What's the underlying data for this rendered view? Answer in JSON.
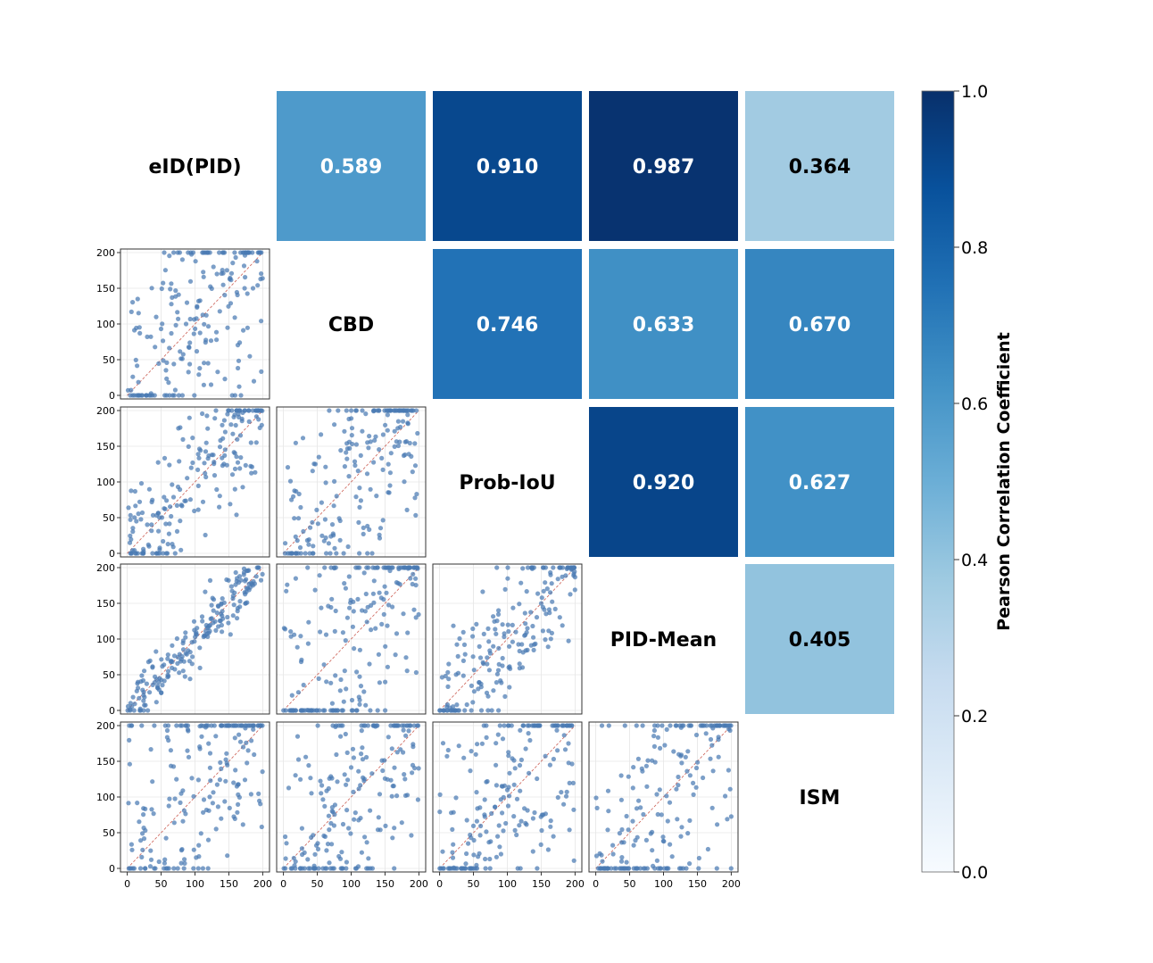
{
  "chart_data": {
    "type": "heatmap",
    "title": "",
    "metrics": [
      "eID(PID)",
      "CBD",
      "Prob-IoU",
      "PID-Mean",
      "ISM"
    ],
    "correlations": [
      {
        "row": "eID(PID)",
        "col": "CBD",
        "value": "0.589"
      },
      {
        "row": "eID(PID)",
        "col": "Prob-IoU",
        "value": "0.910"
      },
      {
        "row": "eID(PID)",
        "col": "PID-Mean",
        "value": "0.987"
      },
      {
        "row": "eID(PID)",
        "col": "ISM",
        "value": "0.364"
      },
      {
        "row": "CBD",
        "col": "Prob-IoU",
        "value": "0.746"
      },
      {
        "row": "CBD",
        "col": "PID-Mean",
        "value": "0.633"
      },
      {
        "row": "CBD",
        "col": "ISM",
        "value": "0.670"
      },
      {
        "row": "Prob-IoU",
        "col": "PID-Mean",
        "value": "0.920"
      },
      {
        "row": "Prob-IoU",
        "col": "ISM",
        "value": "0.627"
      },
      {
        "row": "PID-Mean",
        "col": "ISM",
        "value": "0.405"
      }
    ],
    "scatter_axis": {
      "xlim": [
        -10,
        210
      ],
      "ylim": [
        -5,
        205
      ],
      "xticks": [
        "0",
        "50",
        "100",
        "150",
        "200"
      ],
      "yticks": [
        "0",
        "50",
        "100",
        "150",
        "200"
      ],
      "reference_line": "y = x (dashed)",
      "points_per_panel": 200
    },
    "colorbar": {
      "label": "Pearson Correlation Coefficient",
      "range": [
        0,
        1
      ],
      "ticks": [
        "0.0",
        "0.2",
        "0.4",
        "0.6",
        "0.8",
        "1.0"
      ],
      "colormap": "Blues"
    }
  },
  "colors": {
    "point": "#4a7ab3",
    "reference_line": "#c0392b",
    "text_light": "#ffffff",
    "text_dark": "#000000"
  }
}
